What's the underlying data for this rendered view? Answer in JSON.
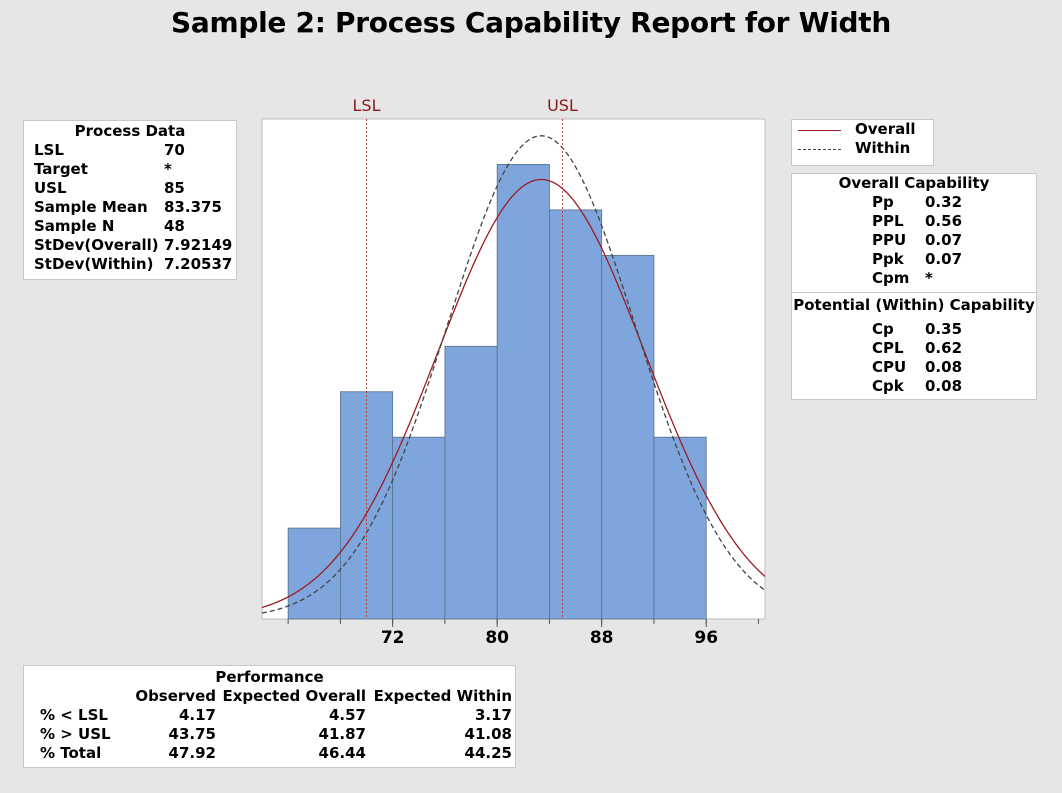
{
  "title": "Sample 2: Process Capability Report for Width",
  "process_data": {
    "header": "Process Data",
    "rows": [
      {
        "label": "LSL",
        "value": "70"
      },
      {
        "label": "Target",
        "value": "*"
      },
      {
        "label": "USL",
        "value": "85"
      },
      {
        "label": "Sample Mean",
        "value": "83.375"
      },
      {
        "label": "Sample N",
        "value": "48"
      },
      {
        "label": "StDev(Overall)",
        "value": "7.92149"
      },
      {
        "label": "StDev(Within)",
        "value": "7.20537"
      }
    ]
  },
  "legend": {
    "overall": "Overall",
    "within": "Within"
  },
  "colors": {
    "bar_fill": "#7fa6dc",
    "bar_stroke": "#5a6f8c",
    "overall_curve": "#9b1c24",
    "within_curve": "#444444",
    "spec_line": "#c0392b",
    "spec_label": "#8b1a1a"
  },
  "overall_capability": {
    "header": "Overall Capability",
    "rows": [
      {
        "label": "Pp",
        "value": "0.32"
      },
      {
        "label": "PPL",
        "value": "0.56"
      },
      {
        "label": "PPU",
        "value": "0.07"
      },
      {
        "label": "Ppk",
        "value": "0.07"
      },
      {
        "label": "Cpm",
        "value": "*"
      }
    ]
  },
  "potential_capability": {
    "header": "Potential (Within) Capability",
    "rows": [
      {
        "label": "Cp",
        "value": "0.35"
      },
      {
        "label": "CPL",
        "value": "0.62"
      },
      {
        "label": "CPU",
        "value": "0.08"
      },
      {
        "label": "Cpk",
        "value": "0.08"
      }
    ]
  },
  "performance": {
    "header": "Performance",
    "columns": [
      "Observed",
      "Expected Overall",
      "Expected Within"
    ],
    "rows": [
      {
        "label": "% < LSL",
        "values": [
          "4.17",
          "4.57",
          "3.17"
        ]
      },
      {
        "label": "% > USL",
        "values": [
          "43.75",
          "41.87",
          "41.08"
        ]
      },
      {
        "label": "% Total",
        "values": [
          "47.92",
          "46.44",
          "44.25"
        ]
      }
    ]
  },
  "chart_data": {
    "type": "bar",
    "subtype": "histogram",
    "bin_edges": [
      64,
      68,
      72,
      76,
      80,
      84,
      88,
      92,
      96
    ],
    "counts": [
      2,
      5,
      4,
      6,
      10,
      9,
      8,
      4
    ],
    "xlim": [
      62,
      100.5
    ],
    "ylim": [
      0,
      11
    ],
    "x_ticks": [
      72,
      80,
      88,
      96
    ],
    "spec_limits": [
      {
        "label": "LSL",
        "value": 70
      },
      {
        "label": "USL",
        "value": 85
      }
    ],
    "curves": [
      {
        "name": "Overall",
        "mean": 83.375,
        "sd": 7.92149,
        "style": "solid"
      },
      {
        "name": "Within",
        "mean": 83.375,
        "sd": 7.20537,
        "style": "dashed"
      }
    ],
    "grid": false,
    "legend_position": "top-right"
  }
}
